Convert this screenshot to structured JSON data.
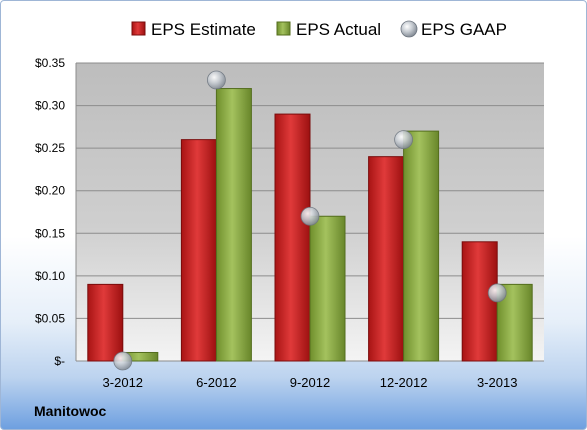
{
  "brand_label": "Manitowoc",
  "chart_data": {
    "type": "bar",
    "title": "",
    "xlabel": "",
    "ylabel": "",
    "categories": [
      "3-2012",
      "6-2012",
      "9-2012",
      "12-2012",
      "3-2013"
    ],
    "series": [
      {
        "name": "EPS Estimate",
        "kind": "bar",
        "color": "#d42d2d",
        "values": [
          0.09,
          0.26,
          0.29,
          0.24,
          0.14
        ]
      },
      {
        "name": "EPS Actual",
        "kind": "bar",
        "color": "#8fb24a",
        "values": [
          0.01,
          0.32,
          0.17,
          0.27,
          0.09
        ]
      },
      {
        "name": "EPS GAAP",
        "kind": "marker",
        "color": "#b8bec6",
        "values": [
          0.0,
          0.33,
          0.17,
          0.26,
          0.08
        ]
      }
    ],
    "ylim": [
      0,
      0.35
    ],
    "y_ticks": [
      {
        "value": 0.35,
        "label": "$0.35"
      },
      {
        "value": 0.3,
        "label": "$0.30"
      },
      {
        "value": 0.25,
        "label": "$0.25"
      },
      {
        "value": 0.2,
        "label": "$0.20"
      },
      {
        "value": 0.15,
        "label": "$0.15"
      },
      {
        "value": 0.1,
        "label": "$0.10"
      },
      {
        "value": 0.05,
        "label": "$0.05"
      },
      {
        "value": 0.0,
        "label": "$-"
      }
    ],
    "grid": true,
    "legend_position": "top"
  }
}
